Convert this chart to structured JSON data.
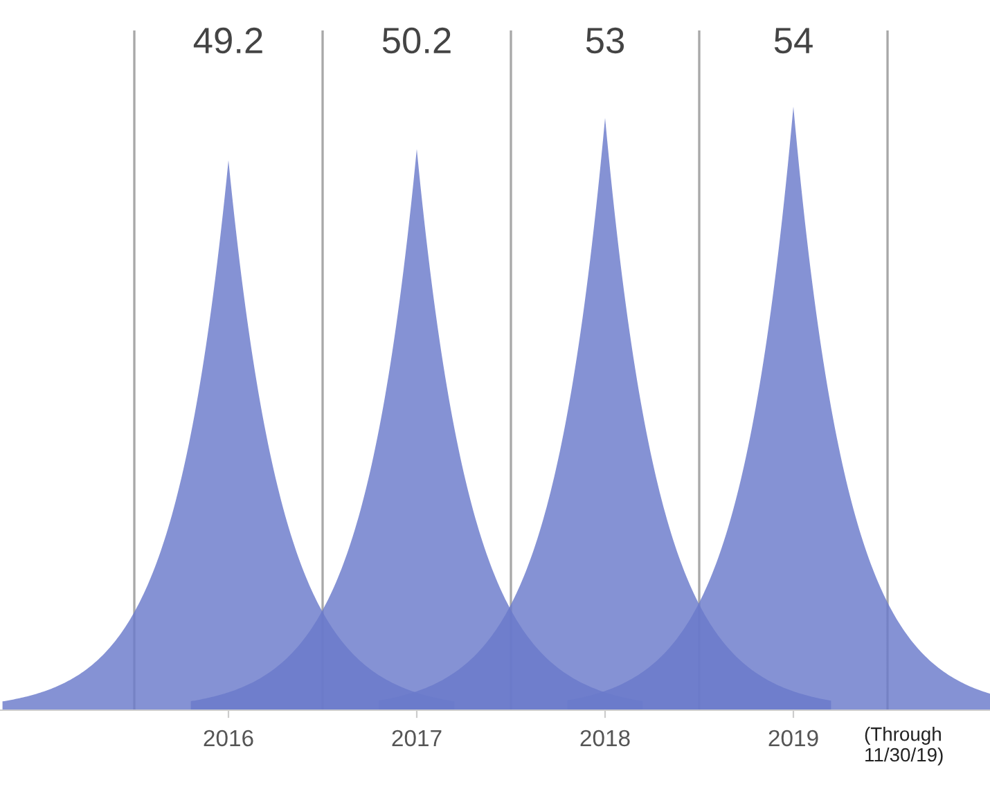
{
  "chart_data": {
    "type": "bar",
    "categories": [
      "2016",
      "2017",
      "2018",
      "2019"
    ],
    "values": [
      49.2,
      50.2,
      53,
      54
    ],
    "color": "#6a7acb",
    "data_labels": true,
    "grid": false,
    "legend": false,
    "annotations": [
      "(Through\n11/30/19)"
    ]
  }
}
